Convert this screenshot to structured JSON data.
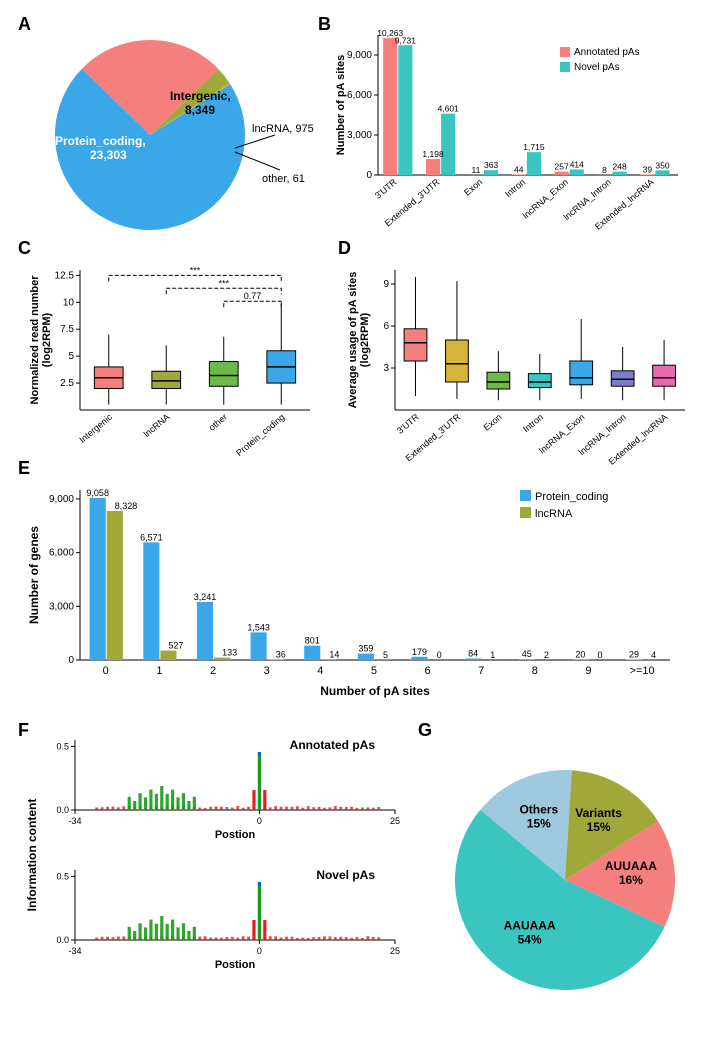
{
  "colors": {
    "salmon": "#f47f7d",
    "teal": "#3bc5c0",
    "olive": "#a0a83a",
    "blue": "#3aa7e8",
    "yellow": "#d6b33b",
    "green": "#6db94a",
    "purple": "#7d7cc6",
    "pink": "#e76aad",
    "gray": "#999999",
    "axis": "#000000",
    "white": "#ffffff",
    "lightblue": "#9ec8db"
  },
  "panelA": {
    "label": "A",
    "type": "pie",
    "slices": [
      {
        "name": "Protein_coding",
        "value": 23303,
        "label": "Protein_coding,\n23,303",
        "color": "#3aa7e8"
      },
      {
        "name": "Intergenic",
        "value": 8349,
        "label": "Intergenic,\n8,349",
        "color": "#f47f7d"
      },
      {
        "name": "lncRNA",
        "value": 975,
        "label": "lncRNA, 975",
        "color": "#a0a83a"
      },
      {
        "name": "other",
        "value": 61,
        "label": "other, 61",
        "color": "#d6b33b"
      }
    ]
  },
  "panelB": {
    "label": "B",
    "type": "grouped-bar",
    "ylabel": "Number of pA sites",
    "yticks": [
      0,
      3000,
      6000,
      9000
    ],
    "ytick_labels": [
      "0",
      "3,000",
      "6,000",
      "9,000"
    ],
    "legend": [
      {
        "name": "Annotated pAs",
        "color": "#f47f7d"
      },
      {
        "name": "Novel pAs",
        "color": "#3bc5c0"
      }
    ],
    "categories": [
      "3'UTR",
      "Extended_3'UTR",
      "Exon",
      "Intron",
      "lncRNA_Exon",
      "lncRNA_Intron",
      "Extended_lncRNA"
    ],
    "annotated": [
      10263,
      1198,
      11,
      44,
      257,
      8,
      39
    ],
    "novel": [
      9731,
      4601,
      363,
      1715,
      414,
      248,
      350
    ],
    "bar_labels": [
      [
        "10,263",
        "9,731"
      ],
      [
        "1,198",
        "4,601"
      ],
      [
        "11",
        "363"
      ],
      [
        "44",
        "1,715"
      ],
      [
        "257",
        "414"
      ],
      [
        "8",
        "248"
      ],
      [
        "39",
        "350"
      ]
    ]
  },
  "panelC": {
    "label": "C",
    "type": "box",
    "ylabel": "Normalized read number\n(log2RPM)",
    "yticks": [
      2.5,
      5,
      7.5,
      10,
      12.5
    ],
    "categories": [
      "Intergenic",
      "lncRNA",
      "other",
      "Protein_coding"
    ],
    "colors": [
      "#f47f7d",
      "#a0a83a",
      "#6db94a",
      "#3aa7e8"
    ],
    "boxes": [
      {
        "min": 0.5,
        "q1": 2.0,
        "med": 3.0,
        "q3": 4.0,
        "max": 7.0
      },
      {
        "min": 0.5,
        "q1": 2.0,
        "med": 2.7,
        "q3": 3.6,
        "max": 6.0
      },
      {
        "min": 0.5,
        "q1": 2.2,
        "med": 3.2,
        "q3": 4.5,
        "max": 6.8
      },
      {
        "min": 0.5,
        "q1": 2.5,
        "med": 4.0,
        "q3": 5.5,
        "max": 10.0
      }
    ],
    "annotations": [
      "***",
      "***",
      "0.77"
    ]
  },
  "panelD": {
    "label": "D",
    "type": "box",
    "ylabel": "Average usage of pA sites\n(log2RPM)",
    "yticks": [
      3,
      6,
      9
    ],
    "categories": [
      "3'UTR",
      "Extended_3'UTR",
      "Exon",
      "Intron",
      "lncRNA_Exon",
      "lncRNA_Intron",
      "Extended_lncRNA"
    ],
    "colors": [
      "#f47f7d",
      "#d6b33b",
      "#6db94a",
      "#3bc5c0",
      "#3aa7e8",
      "#7d7cc6",
      "#e76aad"
    ],
    "boxes": [
      {
        "min": 1.0,
        "q1": 3.5,
        "med": 4.8,
        "q3": 5.8,
        "max": 9.5
      },
      {
        "min": 0.8,
        "q1": 2.0,
        "med": 3.3,
        "q3": 5.0,
        "max": 9.2
      },
      {
        "min": 0.7,
        "q1": 1.5,
        "med": 2.0,
        "q3": 2.7,
        "max": 4.2
      },
      {
        "min": 0.7,
        "q1": 1.6,
        "med": 2.0,
        "q3": 2.6,
        "max": 4.0
      },
      {
        "min": 0.8,
        "q1": 1.8,
        "med": 2.3,
        "q3": 3.5,
        "max": 6.5
      },
      {
        "min": 0.7,
        "q1": 1.7,
        "med": 2.2,
        "q3": 2.8,
        "max": 4.5
      },
      {
        "min": 0.7,
        "q1": 1.7,
        "med": 2.3,
        "q3": 3.2,
        "max": 5.0
      }
    ]
  },
  "panelE": {
    "label": "E",
    "type": "grouped-bar",
    "ylabel": "Number of genes",
    "xlabel": "Number of pA sites",
    "yticks": [
      0,
      3000,
      6000,
      9000
    ],
    "ytick_labels": [
      "0",
      "3,000",
      "6,000",
      "9,000"
    ],
    "legend": [
      {
        "name": "Protein_coding",
        "color": "#3aa7e8"
      },
      {
        "name": "lncRNA",
        "color": "#a0a83a"
      }
    ],
    "categories": [
      "0",
      "1",
      "2",
      "3",
      "4",
      "5",
      "6",
      "7",
      "8",
      "9",
      ">=10"
    ],
    "protein": [
      9058,
      6571,
      3241,
      1543,
      801,
      359,
      179,
      84,
      45,
      20,
      29
    ],
    "lnc": [
      8328,
      527,
      133,
      36,
      14,
      5,
      0,
      1,
      2,
      0,
      4
    ],
    "labels": [
      [
        "9,058",
        "8,328"
      ],
      [
        "6,571",
        "527"
      ],
      [
        "3,241",
        "133"
      ],
      [
        "1,543",
        "36"
      ],
      [
        "801",
        "14"
      ],
      [
        "359",
        "5"
      ],
      [
        "179",
        "0"
      ],
      [
        "84",
        "1"
      ],
      [
        "45",
        "2"
      ],
      [
        "20",
        "0"
      ],
      [
        "29",
        "4"
      ]
    ]
  },
  "panelF": {
    "label": "F",
    "type": "sequence-logo",
    "ylabel": "Information content",
    "xlabel": "Postion",
    "yticks": [
      0.0,
      0.5
    ],
    "xticks": [
      -34,
      0,
      25
    ],
    "tracks": [
      {
        "title": "Annotated pAs"
      },
      {
        "title": "Novel pAs"
      }
    ],
    "base_colors": {
      "A": "#1a9b1a",
      "T": "#e02020",
      "C": "#1060d0",
      "G": "#e0a000"
    }
  },
  "panelG": {
    "label": "G",
    "type": "pie",
    "slices": [
      {
        "name": "AAUAAA",
        "pct": 54,
        "label": "AAUAAA\n54%",
        "color": "#3bc5c0"
      },
      {
        "name": "AUUAAA",
        "pct": 16,
        "label": "AUUAAA\n16%",
        "color": "#f47f7d"
      },
      {
        "name": "Variants",
        "pct": 15,
        "label": "Variants\n15%",
        "color": "#a0a83a"
      },
      {
        "name": "Others",
        "pct": 15,
        "label": "Others\n15%",
        "color": "#9ec8db"
      }
    ]
  }
}
